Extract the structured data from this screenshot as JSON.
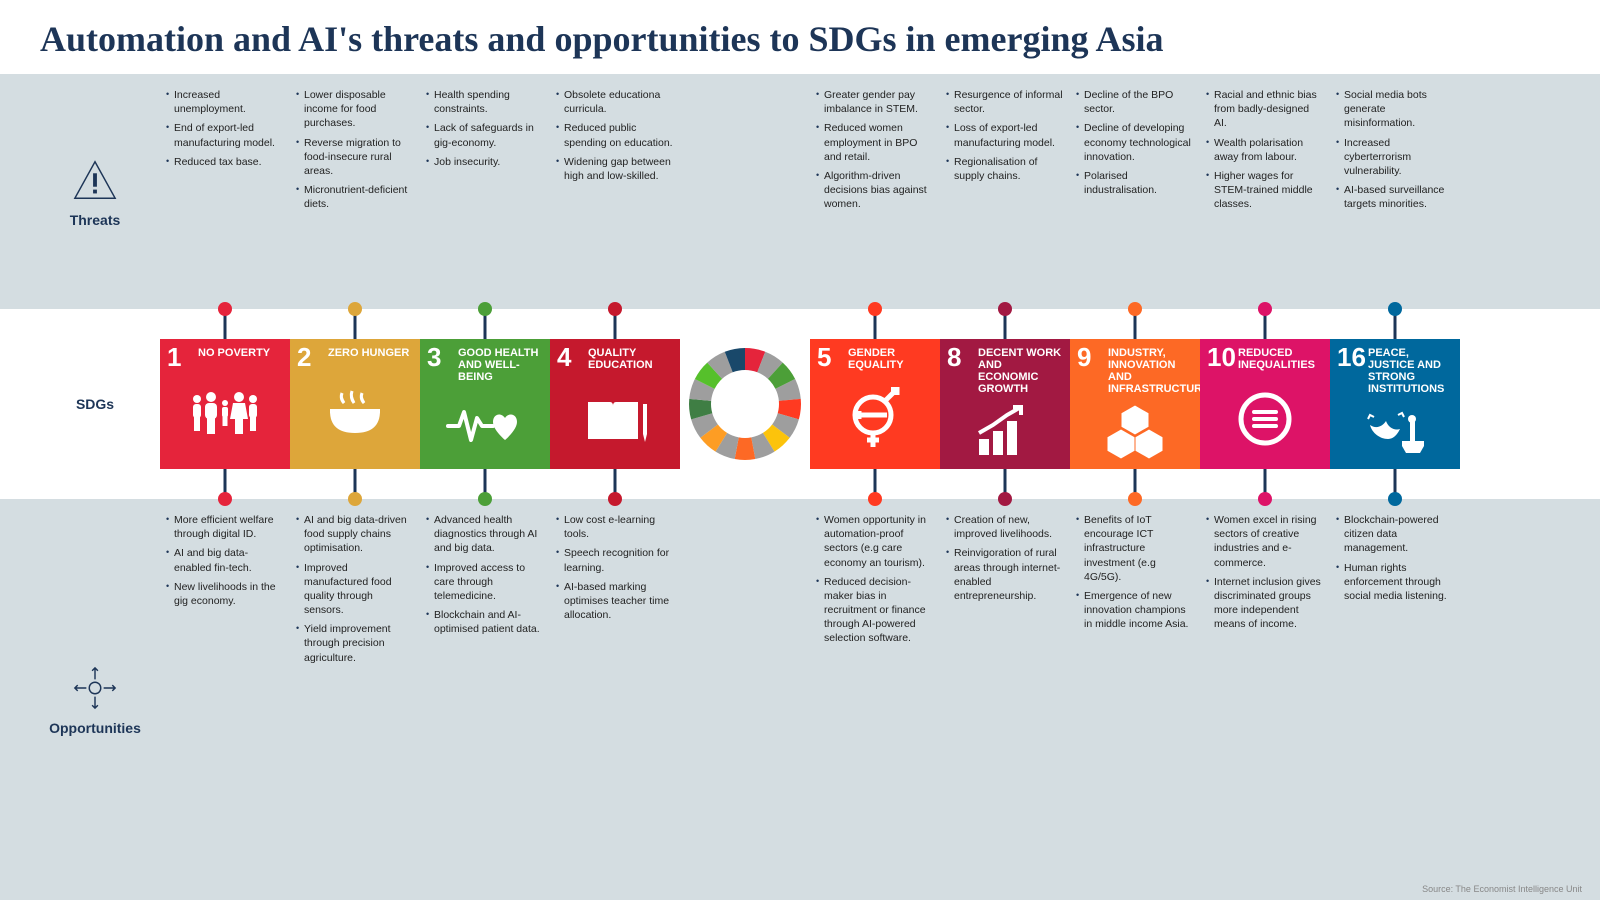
{
  "title": "Automation and AI's threats and opportunities to SDGs in emerging Asia",
  "labels": {
    "threats": "Threats",
    "sdgs": "SDGs",
    "opps": "Opportunities"
  },
  "source": "Source: The Economist Intelligence Unit",
  "section_bg": "#d4dde1",
  "title_color": "#1d3557",
  "pin_color": "#1d3557",
  "wheel_colors": [
    "#e5243b",
    "#dda63a",
    "#4c9f38",
    "#c5192d",
    "#ff3a21",
    "#26bde2",
    "#fcc30b",
    "#a21942",
    "#fd6925",
    "#dd1367",
    "#fd9d24",
    "#bf8b2e",
    "#3f7e44",
    "#0a97d9",
    "#56c02b",
    "#00689d",
    "#19486a"
  ],
  "sdgs": [
    {
      "num": "1",
      "title": "NO POVERTY",
      "color": "#e5243b",
      "threats": [
        "Increased unemployment.",
        "End of export-led manufacturing model.",
        "Reduced tax base."
      ],
      "opps": [
        "More efficient welfare through digital ID.",
        "AI and big data-enabled fin-tech.",
        "New livelihoods in the gig economy."
      ]
    },
    {
      "num": "2",
      "title": "ZERO HUNGER",
      "color": "#dda63a",
      "threats": [
        "Lower disposable income for food purchases.",
        "Reverse migration to food-insecure rural areas.",
        "Micronutrient-deficient diets."
      ],
      "opps": [
        "AI and big data-driven food supply chains optimisation.",
        "Improved manufactured food quality through sensors.",
        "Yield improvement through precision agriculture."
      ]
    },
    {
      "num": "3",
      "title": "GOOD HEALTH AND WELL-BEING",
      "color": "#4c9f38",
      "threats": [
        "Health spending constraints.",
        "Lack of safeguards in gig-economy.",
        "Job insecurity."
      ],
      "opps": [
        "Advanced health diagnostics through AI and big data.",
        "Improved access to care through telemedicine.",
        "Blockchain and AI-optimised patient data."
      ]
    },
    {
      "num": "4",
      "title": "QUALITY EDUCATION",
      "color": "#c5192d",
      "threats": [
        "Obsolete educationa curricula.",
        "Reduced public spending on education.",
        "Widening gap between high and low-skilled."
      ],
      "opps": [
        "Low cost e-learning tools.",
        "Speech recognition for learning.",
        "AI-based marking optimises teacher time allocation."
      ]
    },
    {
      "num": "5",
      "title": "GENDER EQUALITY",
      "color": "#ff3a21",
      "threats": [
        "Greater gender pay imbalance in STEM.",
        "Reduced women employment in BPO and retail.",
        "Algorithm-driven decisions bias against women."
      ],
      "opps": [
        "Women opportunity in automation-proof sectors (e.g care economy an tourism).",
        "Reduced decision-maker bias in recruitment or finance through AI-powered selection software."
      ]
    },
    {
      "num": "8",
      "title": "DECENT WORK AND ECONOMIC GROWTH",
      "color": "#a21942",
      "threats": [
        "Resurgence of informal sector.",
        "Loss of export-led manufacturing model.",
        "Regionalisation of supply chains."
      ],
      "opps": [
        "Creation of new, improved livelihoods.",
        "Reinvigoration of rural areas through internet-enabled entrepreneurship."
      ]
    },
    {
      "num": "9",
      "title": "INDUSTRY, INNOVATION AND INFRASTRUCTURE",
      "color": "#fd6925",
      "threats": [
        "Decline of the BPO sector.",
        "Decline of developing economy technological innovation.",
        "Polarised industralisation."
      ],
      "opps": [
        "Benefits of IoT encourage ICT infrastructure investment (e.g 4G/5G).",
        "Emergence of new innovation champions in middle income Asia."
      ]
    },
    {
      "num": "10",
      "title": "REDUCED INEQUALITIES",
      "color": "#dd1367",
      "threats": [
        "Racial and ethnic bias from badly-designed AI.",
        "Wealth polarisation away from labour.",
        "Higher wages for STEM-trained middle classes."
      ],
      "opps": [
        "Women excel in rising sectors of creative industries and e-commerce.",
        "Internet inclusion gives discriminated groups more independent means of income."
      ]
    },
    {
      "num": "16",
      "title": "PEACE, JUSTICE AND STRONG INSTITUTIONS",
      "color": "#00689d",
      "threats": [
        "Social media bots generate misinformation.",
        "Increased cyberterrorism vulnerability.",
        "AI-based surveillance targets minorities."
      ],
      "opps": [
        "Blockchain-powered citizen data management.",
        "Human rights enforcement through social media listening."
      ]
    }
  ]
}
